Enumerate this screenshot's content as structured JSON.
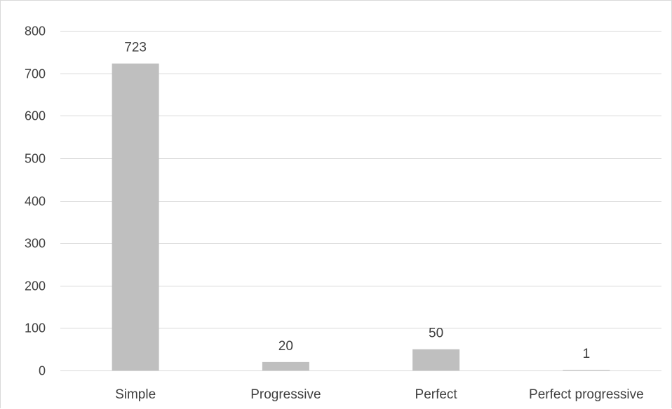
{
  "chart_data": {
    "type": "bar",
    "title": "",
    "xlabel": "",
    "ylabel": "",
    "categories": [
      "Simple",
      "Progressive",
      "Perfect",
      "Perfect progressive"
    ],
    "values": [
      723,
      20,
      50,
      1
    ],
    "data_labels": [
      "723",
      "20",
      "50",
      "1"
    ],
    "ylim": [
      0,
      800
    ],
    "yticks": [
      0,
      100,
      200,
      300,
      400,
      500,
      600,
      700,
      800
    ],
    "ytick_labels": [
      "0",
      "100",
      "200",
      "300",
      "400",
      "500",
      "600",
      "700",
      "800"
    ],
    "grid": true,
    "legend": "none",
    "colors": {
      "bar": "#bfbfbf",
      "grid": "#d9d9d9",
      "axis_text": "#404040"
    }
  }
}
